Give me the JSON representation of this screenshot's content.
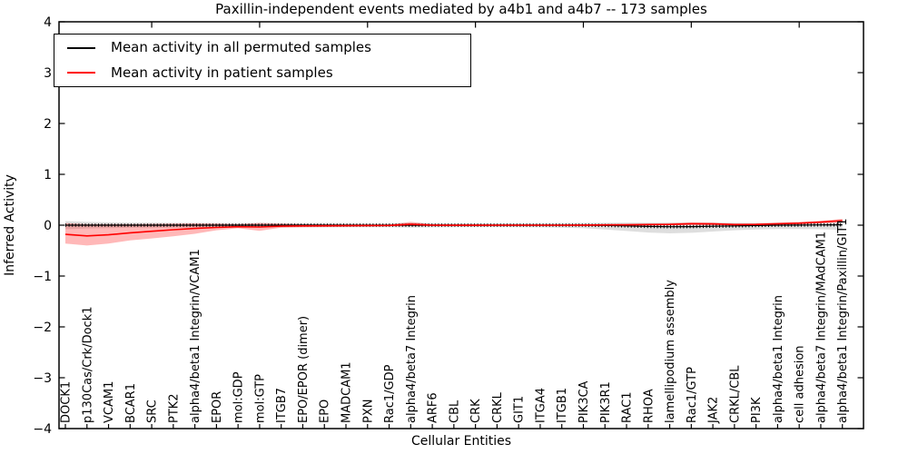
{
  "title": "Paxillin-independent events mediated by a4b1 and a4b7 -- 173 samples",
  "axes": {
    "ylabel": "Inferred Activity",
    "xlabel": "Cellular Entities",
    "ytick_labels": [
      "4",
      "3",
      "2",
      "1",
      "0",
      "−1",
      "−2",
      "−3",
      "−4"
    ]
  },
  "legend": {
    "items": [
      {
        "label": "Mean activity in all permuted samples",
        "color": "#000000"
      },
      {
        "label": "Mean activity in patient samples",
        "color": "#ff0000"
      }
    ]
  },
  "colors": {
    "permuted_line": "#000000",
    "patient_line": "#ff0000",
    "permuted_band": "rgba(0,0,0,0.13)",
    "patient_band": "rgba(255,0,0,0.28)",
    "frame": "#000000"
  },
  "chart_data": {
    "type": "line",
    "title": "Paxillin-independent events mediated by a4b1 and a4b7 -- 173 samples",
    "xlabel": "Cellular Entities",
    "ylabel": "Inferred Activity",
    "ylim": [
      -4,
      4
    ],
    "yticks": [
      4,
      3,
      2,
      1,
      0,
      -1,
      -2,
      -3,
      -4
    ],
    "xticks_major": [
      5,
      10,
      15,
      20,
      25,
      30,
      35
    ],
    "grid": false,
    "legend_position": "upper left",
    "categories": [
      "DOCK1",
      "p130Cas/Crk/Dock1",
      "VCAM1",
      "BCAR1",
      "SRC",
      "PTK2",
      "alpha4/beta1 Integrin/VCAM1",
      "EPOR",
      "mol:GDP",
      "mol:GTP",
      "ITGB7",
      "EPO/EPOR (dimer)",
      "EPO",
      "MADCAM1",
      "PXN",
      "Rac1/GDP",
      "alpha4/beta7 Integrin",
      "ARF6",
      "CBL",
      "CRK",
      "CRKL",
      "GIT1",
      "ITGA4",
      "ITGB1",
      "PIK3CA",
      "PIK3R1",
      "RAC1",
      "RHOA",
      "lamellipodium assembly",
      "Rac1/GTP",
      "JAK2",
      "CRKL/CBL",
      "PI3K",
      "alpha4/beta1 Integrin",
      "cell adhesion",
      "alpha4/beta7 Integrin/MAdCAM1",
      "alpha4/beta1 Integrin/Paxillin/GIT1"
    ],
    "series": [
      {
        "name": "Mean activity in all permuted samples",
        "color": "#000000",
        "values": [
          0,
          0,
          0,
          0,
          0,
          0,
          0,
          0,
          0,
          0,
          0,
          0,
          0,
          0,
          0,
          0,
          0,
          0,
          0,
          0,
          0,
          0,
          0,
          0,
          0,
          -0.005,
          -0.015,
          -0.025,
          -0.03,
          -0.028,
          -0.022,
          -0.015,
          -0.008,
          0,
          0.002,
          0.005,
          0.008
        ],
        "band_upper": [
          0.08,
          0.065,
          0.055,
          0.05,
          0.048,
          0.045,
          0.045,
          0.042,
          0.04,
          0.042,
          0.04,
          0.04,
          0.042,
          0.04,
          0.038,
          0.038,
          0.045,
          0.04,
          0.036,
          0.035,
          0.035,
          0.035,
          0.038,
          0.04,
          0.042,
          0.045,
          0.05,
          0.05,
          0.05,
          0.05,
          0.05,
          0.045,
          0.04,
          0.04,
          0.045,
          0.05,
          0.045
        ],
        "band_lower": [
          -0.08,
          -0.065,
          -0.058,
          -0.052,
          -0.05,
          -0.048,
          -0.048,
          -0.045,
          -0.042,
          -0.048,
          -0.042,
          -0.04,
          -0.042,
          -0.04,
          -0.04,
          -0.04,
          -0.048,
          -0.042,
          -0.04,
          -0.038,
          -0.038,
          -0.04,
          -0.042,
          -0.048,
          -0.06,
          -0.085,
          -0.115,
          -0.145,
          -0.16,
          -0.15,
          -0.125,
          -0.1,
          -0.085,
          -0.075,
          -0.075,
          -0.08,
          -0.095
        ]
      },
      {
        "name": "Mean activity in patient samples",
        "color": "#ff0000",
        "values": [
          -0.18,
          -0.21,
          -0.19,
          -0.15,
          -0.12,
          -0.09,
          -0.065,
          -0.045,
          -0.03,
          -0.035,
          -0.02,
          -0.015,
          -0.012,
          -0.01,
          -0.008,
          -0.005,
          0.02,
          0,
          -0.002,
          -0.002,
          0,
          0,
          0,
          0,
          0.002,
          0.005,
          0.008,
          0.012,
          0.015,
          0.028,
          0.025,
          0.012,
          0.015,
          0.028,
          0.04,
          0.06,
          0.09
        ],
        "band_upper": [
          0.04,
          0.02,
          0.02,
          0.02,
          0.025,
          0.03,
          0.035,
          0.03,
          0.02,
          0.045,
          0.03,
          0.02,
          0.018,
          0.015,
          0.012,
          0.012,
          0.065,
          0.02,
          0.015,
          0.015,
          0.015,
          0.015,
          0.015,
          0.015,
          0.015,
          0.02,
          0.025,
          0.03,
          0.04,
          0.055,
          0.05,
          0.03,
          0.035,
          0.05,
          0.065,
          0.085,
          0.125
        ],
        "band_lower": [
          -0.36,
          -0.4,
          -0.36,
          -0.3,
          -0.26,
          -0.22,
          -0.17,
          -0.1,
          -0.06,
          -0.11,
          -0.05,
          -0.04,
          -0.035,
          -0.03,
          -0.025,
          -0.02,
          -0.02,
          -0.018,
          -0.015,
          -0.015,
          -0.015,
          -0.015,
          -0.015,
          -0.015,
          -0.012,
          -0.01,
          -0.005,
          0,
          0,
          0.005,
          0,
          -0.005,
          0,
          0.01,
          0.02,
          0.035,
          0.05
        ]
      }
    ]
  }
}
